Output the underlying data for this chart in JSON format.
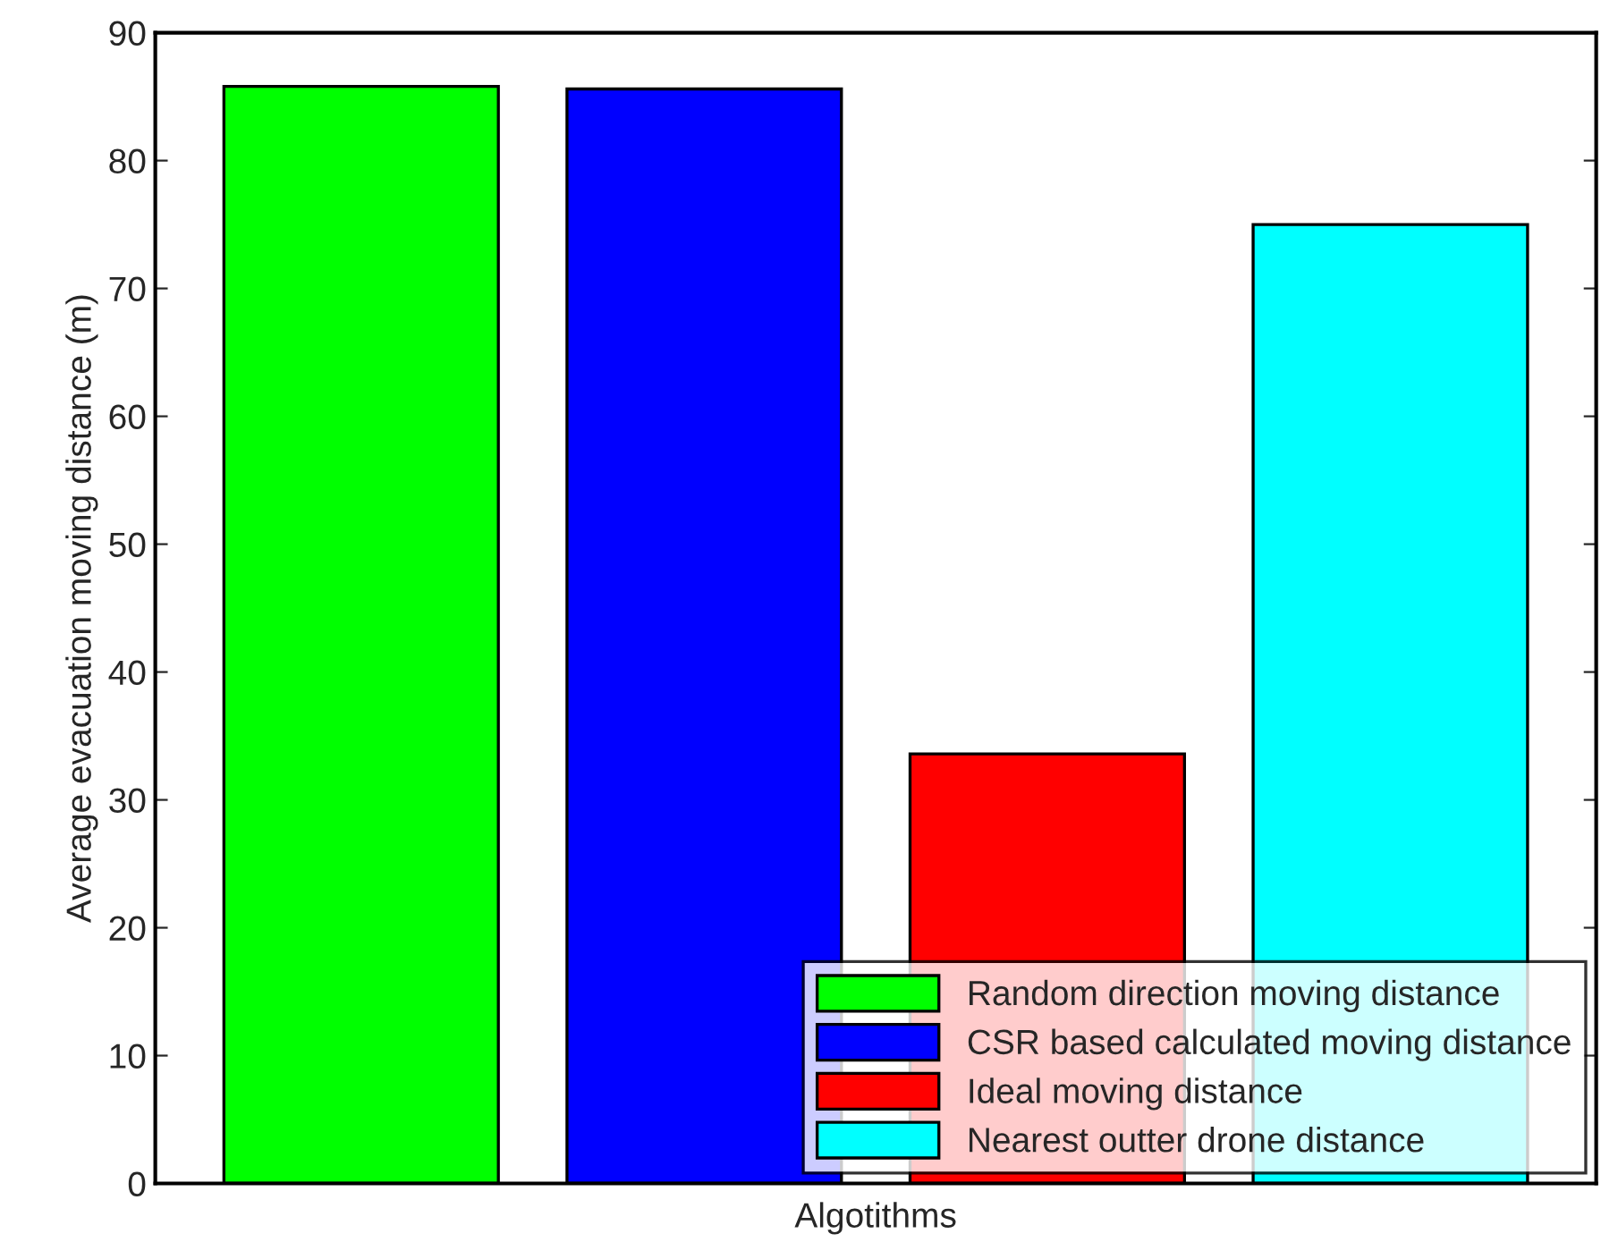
{
  "chart_data": {
    "type": "bar",
    "xlabel": "Algotithms",
    "ylabel": "Average evacuation moving distance (m)",
    "categories": [
      null
    ],
    "series": [
      {
        "name": "Random direction moving distance",
        "color": "#00ff00",
        "values": [
          85.8
        ]
      },
      {
        "name": "CSR based calculated moving distance",
        "color": "#0000ff",
        "values": [
          85.6
        ]
      },
      {
        "name": "Ideal moving distance",
        "color": "#ff0000",
        "values": [
          33.6
        ]
      },
      {
        "name": "Nearest outter drone distance",
        "color": "#00ffff",
        "values": [
          75.0
        ]
      }
    ],
    "ylim": [
      0,
      90
    ],
    "yticks": [
      0,
      10,
      20,
      30,
      40,
      50,
      60,
      70,
      80,
      90
    ],
    "grid": false,
    "legend": "bottom right"
  }
}
